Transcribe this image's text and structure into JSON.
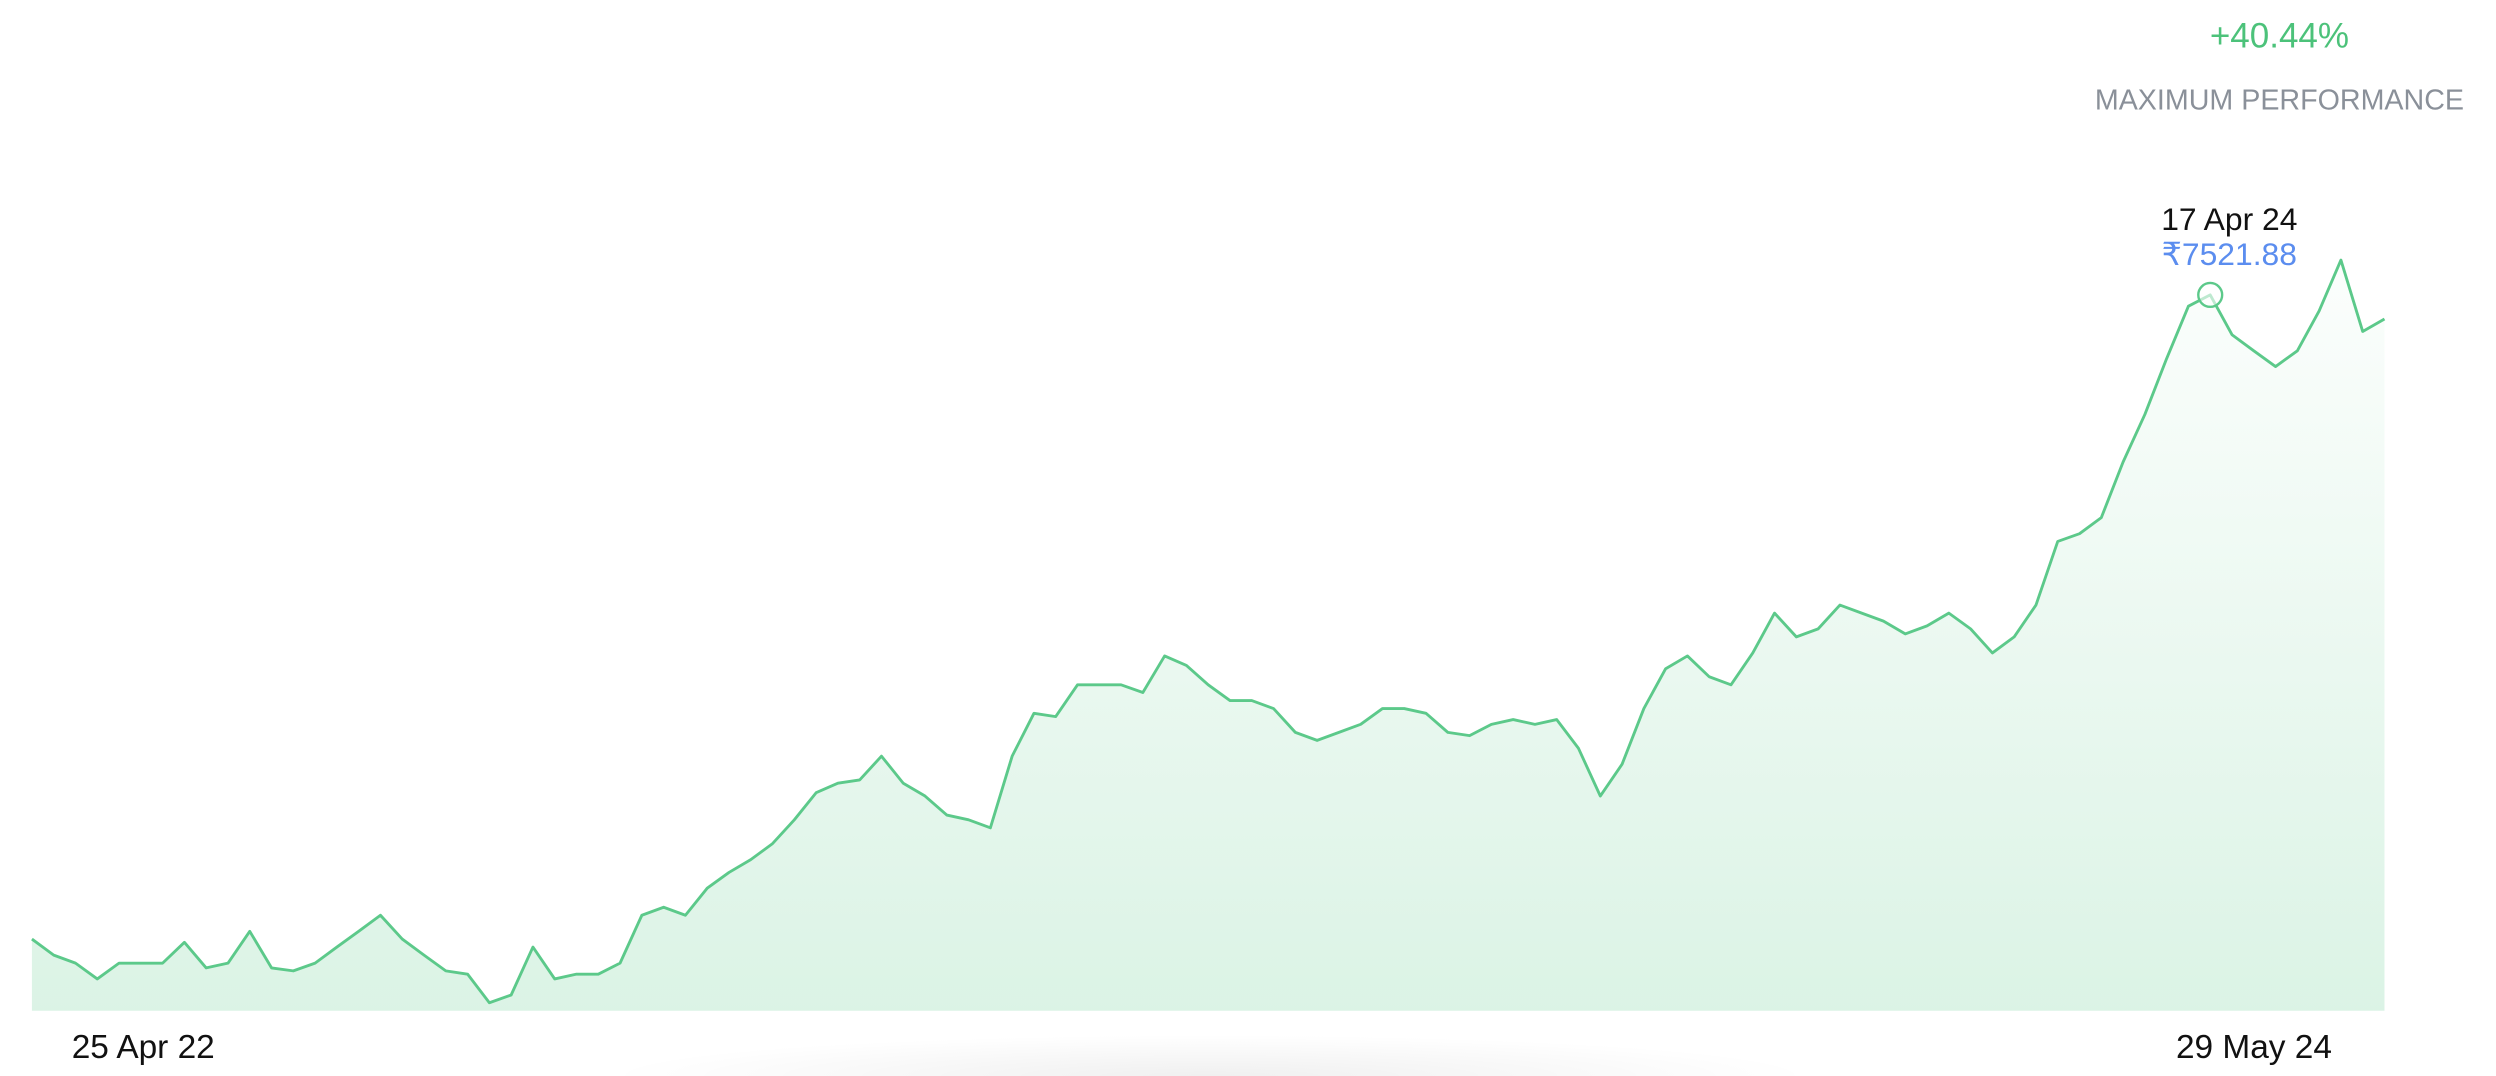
{
  "header": {
    "performance": "+40.44%",
    "caption": "MAXIMUM PERFORMANCE"
  },
  "chart_data": {
    "type": "area",
    "color": "#5cc98a",
    "grid": false,
    "ylim": [
      5115,
      7700
    ],
    "categories": [
      "25 Apr 22",
      null,
      null,
      null,
      null,
      null,
      null,
      null,
      null,
      null,
      null,
      null,
      null,
      null,
      null,
      null,
      null,
      null,
      null,
      null,
      null,
      null,
      null,
      null,
      null,
      null,
      null,
      null,
      null,
      null,
      null,
      null,
      null,
      null,
      null,
      null,
      null,
      null,
      null,
      null,
      null,
      null,
      null,
      null,
      null,
      null,
      null,
      null,
      null,
      null,
      null,
      null,
      null,
      null,
      null,
      null,
      null,
      null,
      null,
      null,
      null,
      null,
      null,
      null,
      null,
      null,
      null,
      null,
      null,
      null,
      null,
      null,
      null,
      null,
      null,
      null,
      null,
      null,
      null,
      null,
      null,
      null,
      null,
      null,
      null,
      null,
      null,
      null,
      null,
      null,
      null,
      null,
      null,
      null,
      null,
      null,
      null,
      null,
      null,
      null,
      "17 Apr 24",
      null,
      null,
      null,
      null,
      null,
      null,
      null,
      "29 May 24"
    ],
    "values": [
      5356,
      5302,
      5275,
      5222,
      5275,
      5275,
      5275,
      5345,
      5259,
      5275,
      5382,
      5259,
      5249,
      5275,
      5329,
      5382,
      5436,
      5356,
      5302,
      5249,
      5238,
      5142,
      5168,
      5329,
      5222,
      5238,
      5238,
      5275,
      5436,
      5463,
      5436,
      5527,
      5580,
      5623,
      5677,
      5757,
      5848,
      5880,
      5891,
      5971,
      5880,
      5837,
      5773,
      5757,
      5730,
      5971,
      6115,
      6104,
      6211,
      6211,
      6211,
      6185,
      6308,
      6276,
      6211,
      6158,
      6158,
      6131,
      6051,
      6024,
      6051,
      6078,
      6131,
      6131,
      6115,
      6051,
      6040,
      6078,
      6094,
      6078,
      6094,
      5997,
      5837,
      5944,
      6131,
      6265,
      6308,
      6238,
      6211,
      6318,
      6452,
      6372,
      6399,
      6479,
      6452,
      6425,
      6382,
      6409,
      6452,
      6399,
      6318,
      6372,
      6479,
      6693,
      6719,
      6773,
      6960,
      7120,
      7308,
      7484,
      7521.88,
      7388,
      7334,
      7281,
      7334,
      7468,
      7639,
      7399,
      7441
    ],
    "value_labels": [
      null,
      null,
      null,
      null,
      null,
      null,
      null,
      null,
      null,
      null,
      null,
      null,
      null,
      null,
      null,
      null,
      null,
      null,
      null,
      null,
      null,
      null,
      null,
      null,
      null,
      null,
      null,
      null,
      null,
      null,
      null,
      null,
      null,
      null,
      null,
      null,
      null,
      null,
      null,
      null,
      null,
      null,
      null,
      null,
      null,
      null,
      null,
      null,
      null,
      null,
      null,
      null,
      null,
      null,
      null,
      null,
      null,
      null,
      null,
      null,
      null,
      null,
      null,
      null,
      null,
      null,
      null,
      null,
      null,
      null,
      null,
      null,
      null,
      null,
      null,
      null,
      null,
      null,
      null,
      null,
      null,
      null,
      null,
      null,
      null,
      null,
      null,
      null,
      null,
      null,
      null,
      null,
      null,
      null,
      null,
      null,
      null,
      null,
      null,
      null,
      "₹7521.88",
      null,
      null,
      null,
      null,
      null,
      null,
      null,
      null
    ]
  }
}
